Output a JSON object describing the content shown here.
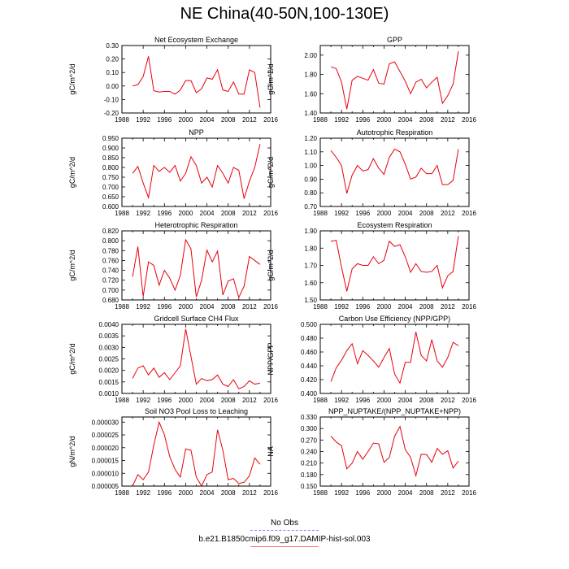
{
  "title": "NE China(40-50N,100-130E)",
  "chart_data": [
    {
      "type": "line",
      "title": "Net Ecosystem Exchange",
      "ylabel": "gC/m^2/d",
      "xlim": [
        1988,
        2016
      ],
      "ylim": [
        -0.2,
        0.3
      ],
      "xticks": [
        1988,
        1992,
        1996,
        2000,
        2004,
        2008,
        2012,
        2016
      ],
      "yticks": [
        "-0.20",
        "-0.10",
        "0.00",
        "0.10",
        "0.20",
        "0.30"
      ],
      "x": [
        1990,
        1991,
        1992,
        1993,
        1994,
        1995,
        1996,
        1997,
        1998,
        1999,
        2000,
        2001,
        2002,
        2003,
        2004,
        2005,
        2006,
        2007,
        2008,
        2009,
        2010,
        2011,
        2012,
        2013,
        2014
      ],
      "series": [
        {
          "color": "#e8000b",
          "values": [
            0.0,
            0.01,
            0.07,
            0.22,
            -0.035,
            -0.045,
            -0.04,
            -0.04,
            -0.06,
            -0.03,
            0.04,
            0.04,
            -0.05,
            -0.02,
            0.06,
            0.05,
            0.12,
            -0.03,
            -0.04,
            0.03,
            -0.06,
            -0.06,
            0.12,
            0.1,
            -0.16
          ]
        }
      ]
    },
    {
      "type": "line",
      "title": "GPP",
      "ylabel": "gC/m^2/d",
      "xlim": [
        1988,
        2016
      ],
      "ylim": [
        1.4,
        2.1
      ],
      "xticks": [
        1988,
        1990,
        1992,
        1994,
        1996,
        1998,
        2000,
        2002,
        2004,
        2006,
        2008,
        2010,
        2012,
        2014,
        2016
      ],
      "yticks": [
        "1.40",
        "1.60",
        "1.80",
        "2.00"
      ],
      "x": [
        1990,
        1991,
        1992,
        1993,
        1994,
        1995,
        1996,
        1997,
        1998,
        1999,
        2000,
        2001,
        2002,
        2003,
        2004,
        2005,
        2006,
        2007,
        2008,
        2009,
        2010,
        2011,
        2012,
        2013,
        2014
      ],
      "series": [
        {
          "color": "#e8000b",
          "values": [
            1.88,
            1.86,
            1.72,
            1.44,
            1.74,
            1.78,
            1.76,
            1.74,
            1.85,
            1.71,
            1.7,
            1.91,
            1.93,
            1.83,
            1.73,
            1.6,
            1.72,
            1.75,
            1.66,
            1.72,
            1.77,
            1.5,
            1.58,
            1.7,
            2.04
          ]
        }
      ]
    },
    {
      "type": "line",
      "title": "NPP",
      "ylabel": "gC/m^2/d",
      "xlim": [
        1988,
        2016
      ],
      "ylim": [
        0.6,
        0.95
      ],
      "xticks": [
        1988,
        1990,
        1992,
        1994,
        1996,
        1998,
        2000,
        2002,
        2004,
        2006,
        2008,
        2010,
        2012,
        2014,
        2016
      ],
      "yticks": [
        "0.600",
        "0.650",
        "0.700",
        "0.750",
        "0.800",
        "0.850",
        "0.900",
        "0.950"
      ],
      "x": [
        1990,
        1991,
        1992,
        1993,
        1994,
        1995,
        1996,
        1997,
        1998,
        1999,
        2000,
        2001,
        2002,
        2003,
        2004,
        2005,
        2006,
        2007,
        2008,
        2009,
        2010,
        2011,
        2012,
        2013,
        2014
      ],
      "series": [
        {
          "color": "#e8000b",
          "values": [
            0.77,
            0.805,
            0.72,
            0.645,
            0.81,
            0.78,
            0.8,
            0.775,
            0.81,
            0.73,
            0.77,
            0.855,
            0.81,
            0.72,
            0.75,
            0.7,
            0.81,
            0.77,
            0.72,
            0.8,
            0.785,
            0.64,
            0.73,
            0.8,
            0.92
          ]
        }
      ]
    },
    {
      "type": "line",
      "title": "Autotrophic Respiration",
      "ylabel": "gC/m^2/d",
      "xlim": [
        1988,
        2016
      ],
      "ylim": [
        0.7,
        1.2
      ],
      "xticks": [
        1988,
        1990,
        1992,
        1994,
        1996,
        1998,
        2000,
        2002,
        2004,
        2006,
        2008,
        2010,
        2012,
        2014,
        2016
      ],
      "yticks": [
        "0.70",
        "0.80",
        "0.90",
        "1.00",
        "1.10",
        "1.20"
      ],
      "x": [
        1990,
        1991,
        1992,
        1993,
        1994,
        1995,
        1996,
        1997,
        1998,
        1999,
        2000,
        2001,
        2002,
        2003,
        2004,
        2005,
        2006,
        2007,
        2008,
        2009,
        2010,
        2011,
        2012,
        2013,
        2014
      ],
      "series": [
        {
          "color": "#e8000b",
          "values": [
            1.11,
            1.06,
            1.0,
            0.795,
            0.93,
            1.0,
            0.96,
            0.97,
            1.05,
            0.98,
            0.935,
            1.06,
            1.12,
            1.1,
            1.01,
            0.9,
            0.915,
            0.98,
            0.94,
            0.94,
            1.0,
            0.86,
            0.86,
            0.89,
            1.12
          ]
        }
      ]
    },
    {
      "type": "line",
      "title": "Heterotrophic Respiration",
      "ylabel": "gC/m^2/d",
      "xlim": [
        1988,
        2016
      ],
      "ylim": [
        0.68,
        0.82
      ],
      "xticks": [
        1988,
        1990,
        1992,
        1994,
        1996,
        1998,
        2000,
        2002,
        2004,
        2006,
        2008,
        2010,
        2012,
        2014,
        2016
      ],
      "yticks": [
        "0.680",
        "0.700",
        "0.720",
        "0.740",
        "0.760",
        "0.780",
        "0.800",
        "0.820"
      ],
      "x": [
        1990,
        1991,
        1992,
        1993,
        1994,
        1995,
        1996,
        1997,
        1998,
        1999,
        2000,
        2001,
        2002,
        2003,
        2004,
        2005,
        2006,
        2007,
        2008,
        2009,
        2010,
        2011,
        2012,
        2013,
        2014
      ],
      "series": [
        {
          "color": "#e8000b",
          "values": [
            0.727,
            0.788,
            0.687,
            0.757,
            0.75,
            0.71,
            0.74,
            0.724,
            0.7,
            0.73,
            0.802,
            0.783,
            0.686,
            0.72,
            0.781,
            0.757,
            0.779,
            0.69,
            0.718,
            0.723,
            0.685,
            0.708,
            0.768,
            0.76,
            0.752
          ]
        }
      ]
    },
    {
      "type": "line",
      "title": "Ecosystem Respiration",
      "ylabel": "gC/m^2/d",
      "xlim": [
        1988,
        2016
      ],
      "ylim": [
        1.5,
        1.9
      ],
      "xticks": [
        1988,
        1990,
        1992,
        1994,
        1996,
        1998,
        2000,
        2002,
        2004,
        2006,
        2008,
        2010,
        2012,
        2014,
        2016
      ],
      "yticks": [
        "1.50",
        "1.60",
        "1.70",
        "1.80",
        "1.90"
      ],
      "x": [
        1990,
        1991,
        1992,
        1993,
        1994,
        1995,
        1996,
        1997,
        1998,
        1999,
        2000,
        2001,
        2002,
        2003,
        2004,
        2005,
        2006,
        2007,
        2008,
        2009,
        2010,
        2011,
        2012,
        2013,
        2014
      ],
      "series": [
        {
          "color": "#e8000b",
          "values": [
            1.84,
            1.845,
            1.69,
            1.55,
            1.68,
            1.71,
            1.7,
            1.7,
            1.75,
            1.71,
            1.73,
            1.84,
            1.81,
            1.82,
            1.75,
            1.66,
            1.71,
            1.665,
            1.66,
            1.665,
            1.7,
            1.57,
            1.64,
            1.665,
            1.87
          ]
        }
      ]
    },
    {
      "type": "line",
      "title": "Gridcell Surface CH4 Flux",
      "ylabel": "gC/m^2/d",
      "xlim": [
        1988,
        2016
      ],
      "ylim": [
        0.001,
        0.004
      ],
      "xticks": [
        1988,
        1990,
        1992,
        1994,
        1996,
        1998,
        2000,
        2002,
        2004,
        2006,
        2008,
        2010,
        2012,
        2014,
        2016
      ],
      "yticks": [
        "0.0010",
        "0.0015",
        "0.0020",
        "0.0025",
        "0.0030",
        "0.0035",
        "0.0040"
      ],
      "x": [
        1990,
        1991,
        1992,
        1993,
        1994,
        1995,
        1996,
        1997,
        1998,
        1999,
        2000,
        2001,
        2002,
        2003,
        2004,
        2005,
        2006,
        2007,
        2008,
        2009,
        2010,
        2011,
        2012,
        2013,
        2014
      ],
      "series": [
        {
          "color": "#e8000b",
          "values": [
            0.00165,
            0.0021,
            0.0022,
            0.0018,
            0.0021,
            0.0017,
            0.0019,
            0.0016,
            0.0019,
            0.0022,
            0.0038,
            0.0026,
            0.0014,
            0.00165,
            0.00155,
            0.0016,
            0.0018,
            0.0014,
            0.0013,
            0.0016,
            0.0012,
            0.0013,
            0.00155,
            0.0014,
            0.00145
          ]
        }
      ]
    },
    {
      "type": "line",
      "title": "Carbon Use Efficiency (NPP/GPP)",
      "ylabel": "NPP/GPP",
      "xlim": [
        1988,
        2016
      ],
      "ylim": [
        0.4,
        0.5
      ],
      "xticks": [
        1988,
        1990,
        1992,
        1994,
        1996,
        1998,
        2000,
        2002,
        2004,
        2006,
        2008,
        2010,
        2012,
        2014,
        2016
      ],
      "yticks": [
        "0.400",
        "0.420",
        "0.440",
        "0.460",
        "0.480",
        "0.500"
      ],
      "x": [
        1990,
        1991,
        1992,
        1993,
        1994,
        1995,
        1996,
        1997,
        1998,
        1999,
        2000,
        2001,
        2002,
        2003,
        2004,
        2005,
        2006,
        2007,
        2008,
        2009,
        2010,
        2011,
        2012,
        2013,
        2014
      ],
      "series": [
        {
          "color": "#e8000b",
          "values": [
            0.417,
            0.437,
            0.448,
            0.462,
            0.472,
            0.443,
            0.462,
            0.455,
            0.447,
            0.438,
            0.452,
            0.465,
            0.428,
            0.415,
            0.445,
            0.445,
            0.489,
            0.455,
            0.447,
            0.478,
            0.447,
            0.438,
            0.452,
            0.474,
            0.469
          ]
        }
      ]
    },
    {
      "type": "line",
      "title": "Soil NO3 Pool Loss to Leaching",
      "ylabel": "gN/m^2/d",
      "xlim": [
        1988,
        2016
      ],
      "ylim": [
        5e-06,
        3.2e-05
      ],
      "xticks": [
        1988,
        1990,
        1992,
        1994,
        1996,
        1998,
        2000,
        2002,
        2004,
        2006,
        2008,
        2010,
        2012,
        2014,
        2016
      ],
      "yticks": [
        "0.000005",
        "0.000010",
        "0.000015",
        "0.000020",
        "0.000025",
        "0.000030"
      ],
      "x": [
        1990,
        1991,
        1992,
        1993,
        1994,
        1995,
        1996,
        1997,
        1998,
        1999,
        2000,
        2001,
        2002,
        2003,
        2004,
        2005,
        2006,
        2007,
        2008,
        2009,
        2010,
        2011,
        2012,
        2013,
        2014
      ],
      "series": [
        {
          "color": "#e8000b",
          "values": [
            5e-06,
            9.5e-06,
            7.5e-06,
            1.05e-05,
            2.1e-05,
            3e-05,
            2.5e-05,
            1.65e-05,
            1.15e-05,
            8.5e-06,
            1.95e-05,
            1.9e-05,
            8.5e-06,
            5e-06,
            9.5e-06,
            1.05e-05,
            2.7e-05,
            1.9e-05,
            7.5e-06,
            8e-06,
            6e-06,
            6.5e-06,
            9e-06,
            1.6e-05,
            1.35e-05
          ]
        }
      ]
    },
    {
      "type": "line",
      "title": "NPP_NUPTAKE/(NPP_NUPTAKE+NPP)",
      "ylabel": "NA",
      "xlim": [
        1988,
        2016
      ],
      "ylim": [
        0.15,
        0.33
      ],
      "xticks": [
        1988,
        1990,
        1992,
        1994,
        1996,
        1998,
        2000,
        2002,
        2004,
        2006,
        2008,
        2010,
        2012,
        2014,
        2016
      ],
      "yticks": [
        "0.150",
        "0.180",
        "0.210",
        "0.240",
        "0.270",
        "0.300",
        "0.330"
      ],
      "x": [
        1990,
        1991,
        1992,
        1993,
        1994,
        1995,
        1996,
        1997,
        1998,
        1999,
        2000,
        2001,
        2002,
        2003,
        2004,
        2005,
        2006,
        2007,
        2008,
        2009,
        2010,
        2011,
        2012,
        2013,
        2014
      ],
      "series": [
        {
          "color": "#e8000b",
          "values": [
            0.28,
            0.265,
            0.255,
            0.195,
            0.21,
            0.24,
            0.22,
            0.24,
            0.262,
            0.26,
            0.212,
            0.225,
            0.28,
            0.305,
            0.245,
            0.225,
            0.177,
            0.233,
            0.232,
            0.212,
            0.248,
            0.233,
            0.242,
            0.197,
            0.215
          ]
        }
      ]
    }
  ],
  "legend": {
    "items": [
      {
        "label": "No Obs",
        "color": "#8888ff",
        "style": "dashed"
      },
      {
        "label": "b.e21.B1850cmip6.f09_g17.DAMIP-hist-sol.003",
        "color": "#ff7777",
        "style": "solid"
      }
    ]
  }
}
